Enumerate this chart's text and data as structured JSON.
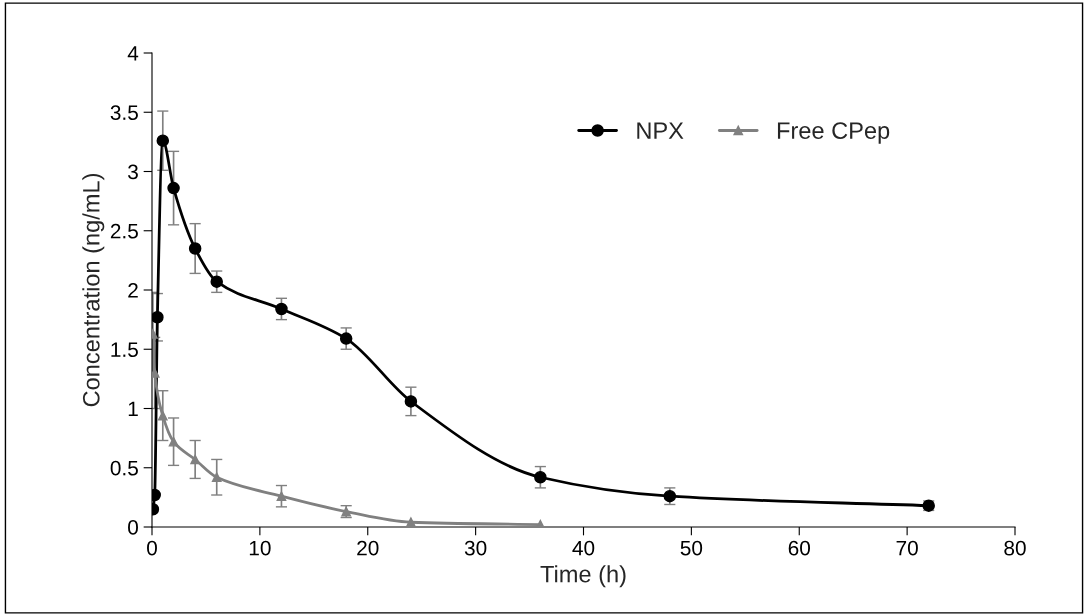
{
  "chart_data": {
    "type": "line",
    "xlabel": "Time (h)",
    "ylabel": "Concentration (ng/mL)",
    "xlim": [
      0,
      80
    ],
    "xticks": [
      0,
      10,
      20,
      30,
      40,
      50,
      60,
      70,
      80
    ],
    "ylim": [
      0,
      4
    ],
    "yticks": [
      0,
      0.5,
      1,
      1.5,
      2,
      2.5,
      3,
      3.5,
      4
    ],
    "grid": false,
    "legend": "top right",
    "series": [
      {
        "name": "NPX",
        "color": "#000000",
        "marker": "circle",
        "x": [
          0.083,
          0.25,
          0.5,
          1,
          2,
          4,
          6,
          12,
          18,
          24,
          36,
          48,
          72
        ],
        "values": [
          0.15,
          0.27,
          1.77,
          3.26,
          2.86,
          2.35,
          2.07,
          1.84,
          1.59,
          1.06,
          0.42,
          0.26,
          0.18
        ],
        "errors": [
          null,
          null,
          0.2,
          0.25,
          0.31,
          0.21,
          0.09,
          0.09,
          0.09,
          0.12,
          0.09,
          0.07,
          0.04
        ]
      },
      {
        "name": "Free CPep",
        "color": "#808080",
        "marker": "triangle",
        "x": [
          0.083,
          0.25,
          1,
          2,
          4,
          6,
          12,
          18,
          24,
          36
        ],
        "values": [
          1.63,
          1.3,
          0.94,
          0.72,
          0.57,
          0.42,
          0.26,
          0.13,
          0.04,
          0.02
        ],
        "errors": [
          0.35,
          0.3,
          0.21,
          0.2,
          0.16,
          0.15,
          0.09,
          0.05,
          null,
          null
        ]
      }
    ]
  }
}
